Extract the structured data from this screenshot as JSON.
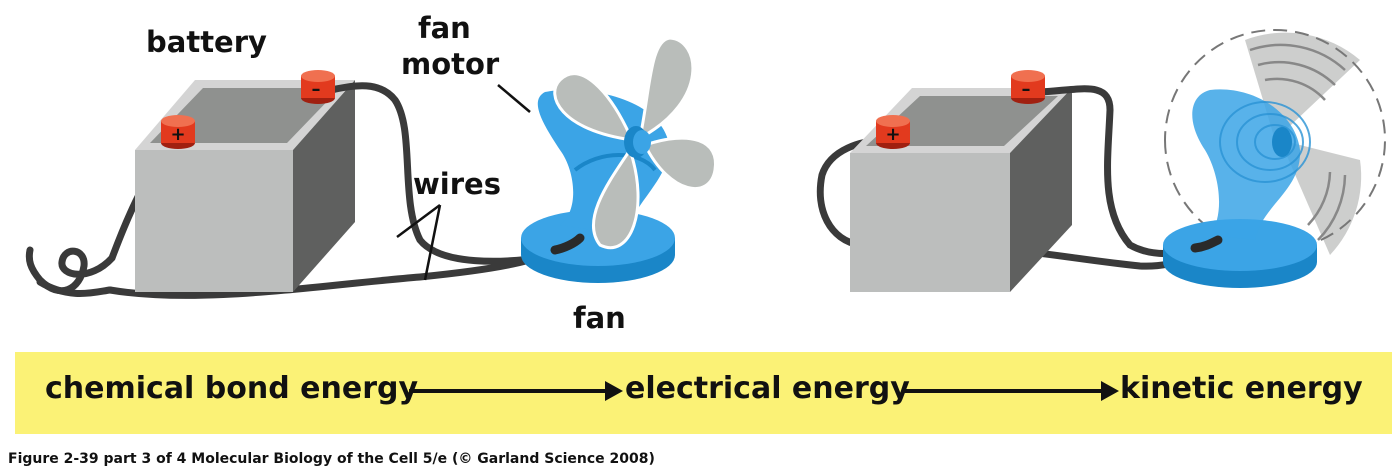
{
  "labels": {
    "battery": "battery",
    "fan_motor_line1": "fan",
    "fan_motor_line2": "motor",
    "wires": "wires",
    "fan": "fan",
    "plus": "+",
    "minus": "–"
  },
  "energy_flow": {
    "chemical": "chemical bond energy",
    "electrical": "electrical energy",
    "kinetic": "kinetic energy"
  },
  "caption": "Figure 2-39 part 3 of 4  Molecular Biology of the Cell 5/e (© Garland Science 2008)",
  "colors": {
    "battery_front": "#bcbebd",
    "battery_side": "#5f605f",
    "battery_top": "#d4d4d4",
    "terminal": "#e23a1e",
    "fan_blue": "#3ba4e6",
    "fan_blade": "#b9bdba",
    "wire": "#3a3a3a",
    "band": "#fbf276"
  }
}
